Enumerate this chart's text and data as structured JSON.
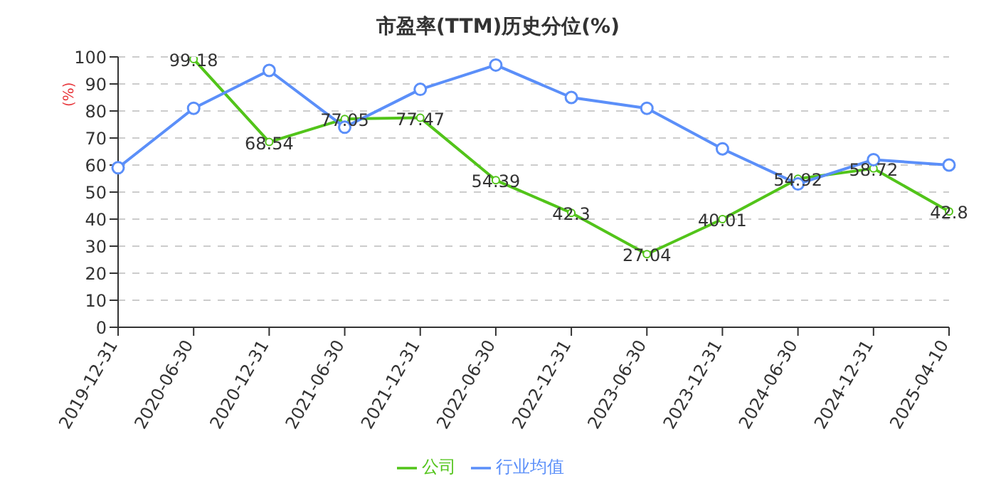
{
  "chart_data": {
    "type": "line",
    "title": "市盈率(TTM)历史分位(%)",
    "ylabel": "(%)",
    "categories": [
      "2019-12-31",
      "2020-06-30",
      "2020-12-31",
      "2021-06-30",
      "2021-12-31",
      "2022-06-30",
      "2022-12-31",
      "2023-06-30",
      "2023-12-31",
      "2024-06-30",
      "2024-12-31",
      "2025-04-10"
    ],
    "series": [
      {
        "name": "公司",
        "color": "#52c41a",
        "values": [
          null,
          99.18,
          68.54,
          77.05,
          77.47,
          54.39,
          42.3,
          27.04,
          40.01,
          54.92,
          58.72,
          42.8
        ],
        "value_labels": [
          null,
          "99.18",
          "68.54",
          "77.05",
          "77.47",
          "54.39",
          "42.3",
          "27.04",
          "40.01",
          "54.92",
          "58.72",
          "42.8"
        ]
      },
      {
        "name": "行业均值",
        "color": "#5b8ff9",
        "values": [
          59,
          81,
          95,
          74,
          88,
          97,
          85,
          81,
          66,
          53,
          62,
          60
        ]
      }
    ],
    "ylim": [
      0,
      100
    ],
    "yticks": [
      0,
      10,
      20,
      30,
      40,
      50,
      60,
      70,
      80,
      90,
      100
    ],
    "grid": "y",
    "legend": "bottom",
    "marker": "circle",
    "line_style": "solid"
  }
}
